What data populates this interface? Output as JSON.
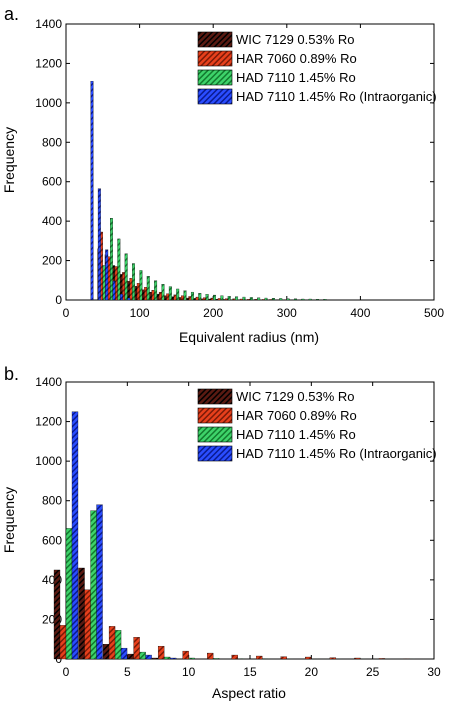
{
  "colors": {
    "wic_fill": "#5a1a12",
    "wic_hatch": "#000000",
    "har_fill": "#e8401c",
    "har_hatch": "#7a1a08",
    "had_fill": "#3ed36a",
    "had_hatch": "#127a2e",
    "hadi_fill": "#2a4dff",
    "hadi_hatch": "#0a1a90"
  },
  "chart_data": [
    {
      "type": "bar",
      "panel_label": "a.",
      "xlabel": "Equivalent radius (nm)",
      "ylabel": "Frequency",
      "xlim": [
        0,
        500
      ],
      "ylim": [
        0,
        1400
      ],
      "xticks": [
        0,
        100,
        200,
        300,
        400,
        500
      ],
      "yticks": [
        0,
        200,
        400,
        600,
        800,
        1000,
        1200,
        1400
      ],
      "legend_position": "top-right",
      "series": [
        {
          "name": "WIC 7129 0.53% Ro",
          "key": "wic",
          "x": [
            50,
            60,
            70,
            80,
            90,
            100,
            110,
            120,
            130,
            140,
            150,
            160,
            170,
            180,
            190,
            200,
            210,
            220,
            230
          ],
          "values": [
            260,
            230,
            175,
            130,
            95,
            70,
            52,
            40,
            30,
            22,
            17,
            13,
            10,
            8,
            6,
            5,
            4,
            3,
            2
          ]
        },
        {
          "name": "HAR 7060 0.89% Ro",
          "key": "har",
          "x": [
            50,
            60,
            70,
            80,
            90,
            100,
            110,
            120,
            130,
            140,
            150,
            160,
            170,
            180,
            190,
            200,
            210,
            220,
            230,
            240,
            250,
            260,
            270,
            280,
            290,
            300
          ],
          "values": [
            345,
            220,
            170,
            140,
            110,
            85,
            65,
            50,
            40,
            32,
            26,
            22,
            18,
            15,
            12,
            10,
            8,
            7,
            6,
            5,
            4,
            4,
            3,
            3,
            2,
            2
          ]
        },
        {
          "name": "HAD 7110 1.45% Ro",
          "key": "had",
          "x": [
            50,
            60,
            70,
            80,
            90,
            100,
            110,
            120,
            130,
            140,
            150,
            160,
            170,
            180,
            190,
            200,
            210,
            220,
            230,
            240,
            250,
            260,
            270,
            280,
            290,
            300,
            310,
            320,
            330,
            340,
            350
          ],
          "values": [
            175,
            415,
            310,
            235,
            185,
            150,
            120,
            98,
            80,
            68,
            56,
            47,
            40,
            34,
            29,
            25,
            22,
            19,
            17,
            15,
            13,
            11,
            10,
            9,
            8,
            7,
            6,
            5,
            5,
            4,
            4
          ]
        },
        {
          "name": "HAD 7110 1.45% Ro (Intraorganic)",
          "key": "hadi",
          "x": [
            30,
            40,
            50,
            60,
            70,
            80
          ],
          "values": [
            1110,
            565,
            255,
            95,
            30,
            10
          ]
        }
      ]
    },
    {
      "type": "bar",
      "panel_label": "b.",
      "xlabel": "Aspect ratio",
      "ylabel": "Frequency",
      "xlim": [
        0,
        30
      ],
      "ylim": [
        0,
        1400
      ],
      "xticks": [
        0,
        5,
        10,
        15,
        20,
        25,
        30
      ],
      "yticks": [
        0,
        200,
        400,
        600,
        800,
        1000,
        1200,
        1400
      ],
      "legend_position": "top-right",
      "series": [
        {
          "name": "WIC 7129 0.53% Ro",
          "key": "wic",
          "x": [
            0,
            2,
            4,
            6,
            8
          ],
          "values": [
            450,
            460,
            75,
            25,
            5
          ]
        },
        {
          "name": "HAR 7060 0.89% Ro",
          "key": "har",
          "x": [
            0,
            2,
            4,
            6,
            8,
            10,
            12,
            14,
            16,
            18,
            20,
            22,
            24,
            26,
            28
          ],
          "values": [
            170,
            350,
            165,
            110,
            65,
            40,
            30,
            20,
            15,
            12,
            10,
            7,
            5,
            3,
            2
          ]
        },
        {
          "name": "HAD 7110 1.45% Ro",
          "key": "had",
          "x": [
            0,
            2,
            4,
            6,
            8,
            10,
            12,
            14,
            16,
            18,
            20,
            22,
            24,
            26,
            28
          ],
          "values": [
            660,
            750,
            145,
            35,
            10,
            5,
            3,
            2,
            2,
            1,
            1,
            1,
            1,
            1,
            1
          ]
        },
        {
          "name": "HAD 7110 1.45% Ro (Intraorganic)",
          "key": "hadi",
          "x": [
            0,
            2,
            4,
            6,
            8
          ],
          "values": [
            1250,
            780,
            55,
            20,
            5
          ]
        }
      ]
    }
  ]
}
